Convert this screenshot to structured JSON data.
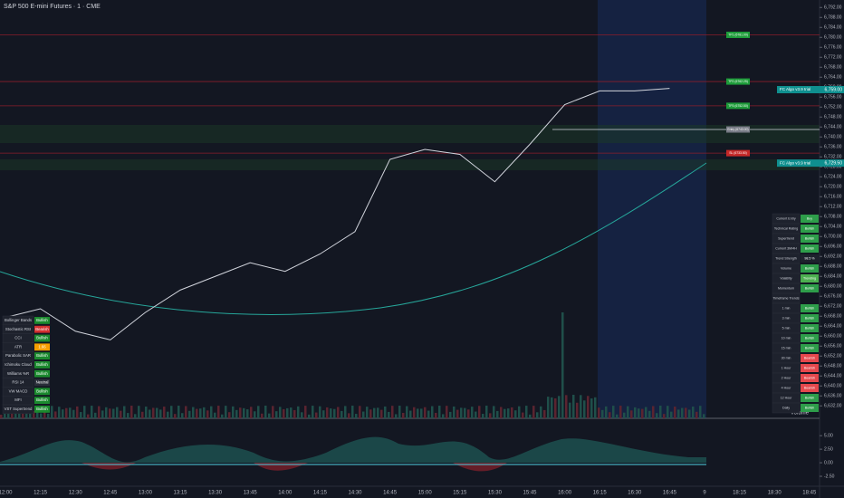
{
  "header": {
    "title": "S&P 500 E-mini Futures · 1 · CME"
  },
  "chart_data": {
    "type": "line",
    "color": "#d1d4dc",
    "categories": [
      "12:00",
      "12:15",
      "12:30",
      "12:45",
      "13:00",
      "13:15",
      "13:30",
      "13:45",
      "14:00",
      "14:15",
      "14:30",
      "14:45",
      "15:00",
      "15:15",
      "15:30",
      "15:45",
      "16:00",
      "16:15",
      "16:30",
      "16:45",
      "9",
      "18:15",
      "18:30",
      "18:45"
    ],
    "values": [
      6667.5,
      6671,
      6662,
      6658.5,
      6669.5,
      6678.5,
      6684,
      6689.5,
      6686,
      6693,
      6702,
      6731,
      6735,
      6733,
      6722,
      6737,
      6753,
      6758.5,
      6758.5,
      6759.5,
      null,
      null,
      null,
      null
    ],
    "ylim": [
      6627,
      6795
    ],
    "yticks": [
      {
        "value": 6632,
        "label": "6,632.00"
      },
      {
        "value": 6636,
        "label": "6,636.00"
      },
      {
        "value": 6640,
        "label": "6,640.00"
      },
      {
        "value": 6644,
        "label": "6,644.00"
      },
      {
        "value": 6648,
        "label": "6,648.00"
      },
      {
        "value": 6652,
        "label": "6,652.00"
      },
      {
        "value": 6656,
        "label": "6,656.00"
      },
      {
        "value": 6660,
        "label": "6,660.00"
      },
      {
        "value": 6664,
        "label": "6,664.00"
      },
      {
        "value": 6668,
        "label": "6,668.00"
      },
      {
        "value": 6672,
        "label": "6,672.00"
      },
      {
        "value": 6676,
        "label": "6,676.00"
      },
      {
        "value": 6680,
        "label": "6,680.00"
      },
      {
        "value": 6684,
        "label": "6,684.00"
      },
      {
        "value": 6688,
        "label": "6,688.00"
      },
      {
        "value": 6692,
        "label": "6,692.00"
      },
      {
        "value": 6696,
        "label": "6,696.00"
      },
      {
        "value": 6700,
        "label": "6,700.00"
      },
      {
        "value": 6704,
        "label": "6,704.00"
      },
      {
        "value": 6708,
        "label": "6,708.00"
      },
      {
        "value": 6712,
        "label": "6,712.00"
      },
      {
        "value": 6716,
        "label": "6,716.00"
      },
      {
        "value": 6720,
        "label": "6,720.00"
      },
      {
        "value": 6724,
        "label": "6,724.00"
      },
      {
        "value": 6728,
        "label": "6,728.00"
      },
      {
        "value": 6732,
        "label": "6,732.00"
      },
      {
        "value": 6736,
        "label": "6,736.00"
      },
      {
        "value": 6740,
        "label": "6,740.00"
      },
      {
        "value": 6744,
        "label": "6,744.00"
      },
      {
        "value": 6748,
        "label": "6,748.00"
      },
      {
        "value": 6752,
        "label": "6,752.00"
      },
      {
        "value": 6756,
        "label": "6,756.00"
      },
      {
        "value": 6760,
        "label": "6,760.00"
      },
      {
        "value": 6764,
        "label": "6,764.00"
      },
      {
        "value": 6768,
        "label": "6,768.00"
      },
      {
        "value": 6772,
        "label": "6,772.00"
      },
      {
        "value": 6776,
        "label": "6,776.00"
      },
      {
        "value": 6780,
        "label": "6,780.00"
      },
      {
        "value": 6784,
        "label": "6,784.00"
      },
      {
        "value": 6788,
        "label": "6,788.00"
      },
      {
        "value": 6792,
        "label": "6,792.00"
      }
    ]
  },
  "levels": [
    {
      "label": "TP1 (6781.00)",
      "value": 6781,
      "color": "#1e9c3a"
    },
    {
      "label": "TP2 (6762.25)",
      "value": 6762.25,
      "color": "#1e9c3a"
    },
    {
      "label": "TP3 (6752.50)",
      "value": 6752.5,
      "color": "#1e9c3a"
    },
    {
      "label": "Entry (6743.00)",
      "value": 6743,
      "color": "#787b86"
    },
    {
      "label": "SL (6733.50)",
      "value": 6733.5,
      "color": "#c62828"
    }
  ],
  "price_tags": [
    {
      "name": "FC Algo v3.9 trial",
      "label": "6,759.00",
      "value": 6759
    },
    {
      "name": "FC Algo v3.9 trial",
      "label": "6,729.50",
      "value": 6729.5
    }
  ],
  "volume_label": "Volume",
  "left_table": {
    "rows": [
      {
        "label": "Bollinger Bands",
        "value": "Bullish",
        "color": "#1b8a2e"
      },
      {
        "label": "Stochastic RSI",
        "value": "Bearish",
        "color": "#d32f2f"
      },
      {
        "label": "CCI",
        "value": "Bullish",
        "color": "#1b8a2e"
      },
      {
        "label": "ATR",
        "value": "1.66",
        "color": "#f59f00"
      },
      {
        "label": "Parabolic SAR",
        "value": "Bullish",
        "color": "#1b8a2e"
      },
      {
        "label": "Ichimoku Cloud",
        "value": "Bullish",
        "color": "#1b8a2e"
      },
      {
        "label": "Williams %R",
        "value": "Bullish",
        "color": "#1b8a2e"
      },
      {
        "label": "RSI 14",
        "value": "Neutral",
        "color": "#2a2e39"
      },
      {
        "label": "VW MACD",
        "value": "Bullish",
        "color": "#1b8a2e"
      },
      {
        "label": "MFI",
        "value": "Bullish",
        "color": "#1b8a2e"
      },
      {
        "label": "VST Supertrend",
        "value": "Bullish",
        "color": "#1b8a2e"
      }
    ]
  },
  "right_table": {
    "rows": [
      {
        "label": "Current Entry",
        "value": "Buy",
        "color": "#2e9d4a"
      },
      {
        "label": "Technical Rating",
        "value": "Bullish",
        "color": "#2e9d4a"
      },
      {
        "label": "Supertrend",
        "value": "Bullish",
        "color": "#2e9d4a"
      },
      {
        "label": "Current 3M/4H",
        "value": "Bullish",
        "color": "#2e9d4a"
      },
      {
        "label": "Trend Strength",
        "value": "98.5 %",
        "color": "#1e222d"
      },
      {
        "label": "Volume",
        "value": "Bullish",
        "color": "#2e9d4a"
      },
      {
        "label": "Volatility",
        "value": "Trending",
        "color": "#4caf50"
      },
      {
        "label": "Momentum",
        "value": "Bullish",
        "color": "#2e9d4a"
      },
      {
        "label": "Timeframe Trends",
        "value": "",
        "color": "#1e222d"
      },
      {
        "label": "1 min",
        "value": "Bullish",
        "color": "#2e9d4a"
      },
      {
        "label": "3 min",
        "value": "Bullish",
        "color": "#2e9d4a"
      },
      {
        "label": "5 min",
        "value": "Bullish",
        "color": "#2e9d4a"
      },
      {
        "label": "10 min",
        "value": "Bullish",
        "color": "#2e9d4a"
      },
      {
        "label": "15 min",
        "value": "Bullish",
        "color": "#2e9d4a"
      },
      {
        "label": "30 min",
        "value": "Bearish",
        "color": "#e5484d"
      },
      {
        "label": "1 Hour",
        "value": "Bearish",
        "color": "#e5484d"
      },
      {
        "label": "2 Hour",
        "value": "Bearish",
        "color": "#e5484d"
      },
      {
        "label": "4 Hour",
        "value": "Bearish",
        "color": "#e5484d"
      },
      {
        "label": "12 Hour",
        "value": "Bullish",
        "color": "#2e9d4a"
      },
      {
        "label": "Daily",
        "value": "Bullish",
        "color": "#2e9d4a"
      }
    ]
  },
  "oscillator": {
    "ylim": [
      -4,
      7.2
    ],
    "yticks": [
      {
        "value": 5,
        "label": "5.00"
      },
      {
        "value": 2.5,
        "label": "2.50"
      },
      {
        "value": 0,
        "label": "0.00"
      },
      {
        "value": -2.5,
        "label": "-2.50"
      }
    ]
  }
}
